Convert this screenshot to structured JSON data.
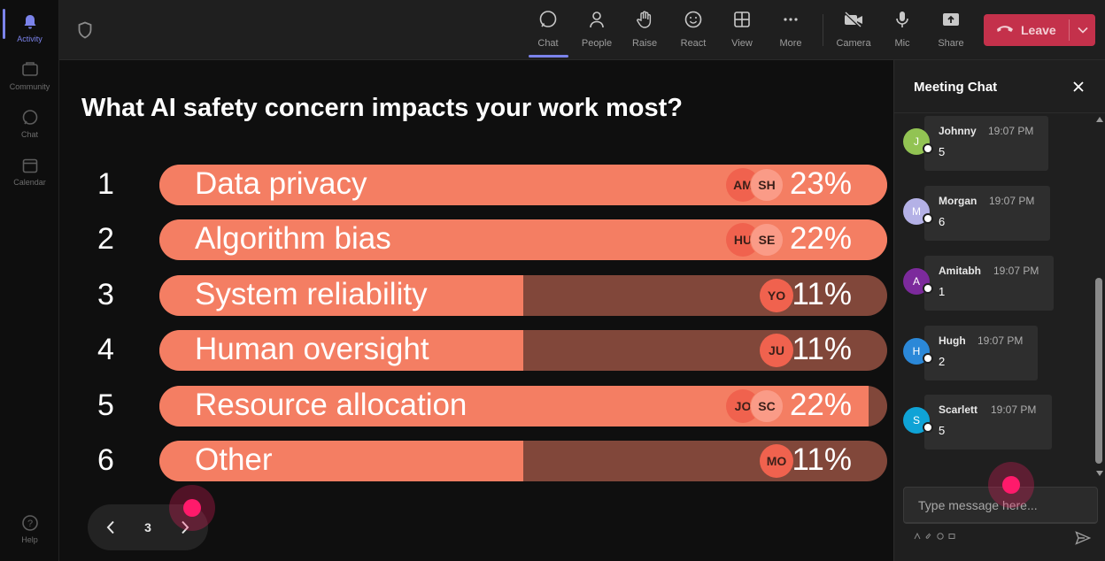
{
  "rail": {
    "items": [
      {
        "label": "Activity",
        "icon": "bell-icon"
      },
      {
        "label": "Community",
        "icon": "community-icon"
      },
      {
        "label": "Chat",
        "icon": "chat-icon"
      },
      {
        "label": "Calendar",
        "icon": "calendar-icon"
      }
    ],
    "help_label": "Help"
  },
  "toolbar": {
    "buttons": [
      {
        "label": "Chat",
        "icon": "chat-icon"
      },
      {
        "label": "People",
        "icon": "people-icon"
      },
      {
        "label": "Raise",
        "icon": "hand-icon"
      },
      {
        "label": "React",
        "icon": "smile-icon"
      },
      {
        "label": "View",
        "icon": "grid-icon"
      },
      {
        "label": "More",
        "icon": "more-icon"
      },
      {
        "label": "Camera",
        "icon": "camera-off-icon"
      },
      {
        "label": "Mic",
        "icon": "mic-icon"
      },
      {
        "label": "Share",
        "icon": "share-icon"
      }
    ],
    "leave_label": "Leave",
    "accent": "#7b83eb",
    "leave_color": "#c4314b"
  },
  "poll": {
    "question": "What AI safety concern impacts your work most?",
    "options": [
      {
        "num": "1",
        "label": "Data privacy",
        "pct": "23%",
        "value": 23,
        "fill": 1.0,
        "avatars": [
          "AM",
          "SH"
        ]
      },
      {
        "num": "2",
        "label": "Algorithm bias",
        "pct": "22%",
        "value": 22,
        "fill": 1.0,
        "avatars": [
          "HU",
          "SE"
        ]
      },
      {
        "num": "3",
        "label": "System reliability",
        "pct": "11%",
        "value": 11,
        "fill": 0.5,
        "avatars": [
          "YO"
        ]
      },
      {
        "num": "4",
        "label": "Human oversight",
        "pct": "11%",
        "value": 11,
        "fill": 0.5,
        "avatars": [
          "JU"
        ]
      },
      {
        "num": "5",
        "label": "Resource allocation",
        "pct": "22%",
        "value": 22,
        "fill": 0.975,
        "avatars": [
          "JO",
          "SC"
        ]
      },
      {
        "num": "6",
        "label": "Other",
        "pct": "11%",
        "value": 11,
        "fill": 0.5,
        "avatars": [
          "MO"
        ]
      }
    ],
    "bar_color": "#f47e63",
    "track_color": "#81473a"
  },
  "pager": {
    "page": "3"
  },
  "chat": {
    "title": "Meeting Chat",
    "messages": [
      {
        "initial": "J",
        "name": "Johnny",
        "time": "19:07 PM",
        "text": "5",
        "color": "#92c353"
      },
      {
        "initial": "M",
        "name": "Morgan",
        "time": "19:07 PM",
        "text": "6",
        "color": "#b4b1e6"
      },
      {
        "initial": "A",
        "name": "Amitabh",
        "time": "19:07 PM",
        "text": "1",
        "color": "#7c2a9c"
      },
      {
        "initial": "H",
        "name": "Hugh",
        "time": "19:07 PM",
        "text": "2",
        "color": "#2b88d8"
      },
      {
        "initial": "S",
        "name": "Scarlett",
        "time": "19:07 PM",
        "text": "5",
        "color": "#0fa3d6"
      }
    ],
    "compose_placeholder": "Type message here..."
  }
}
